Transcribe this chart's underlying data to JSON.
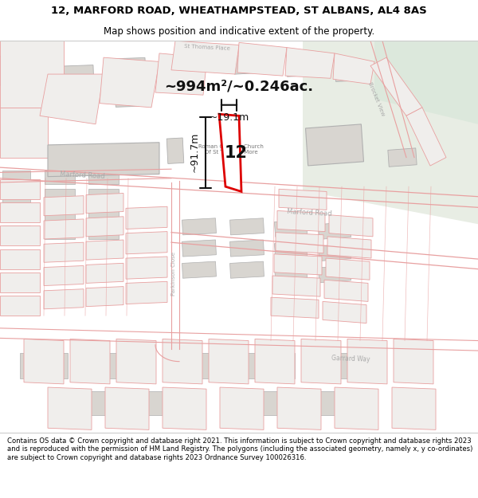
{
  "title_line1": "12, MARFORD ROAD, WHEATHAMPSTEAD, ST ALBANS, AL4 8AS",
  "title_line2": "Map shows position and indicative extent of the property.",
  "footer_text": "Contains OS data © Crown copyright and database right 2021. This information is subject to Crown copyright and database rights 2023 and is reproduced with the permission of HM Land Registry. The polygons (including the associated geometry, namely x, y co-ordinates) are subject to Crown copyright and database rights 2023 Ordnance Survey 100026316.",
  "area_label": "~994m²/~0.246ac.",
  "number_label": "12",
  "dim_width": "~19.1m",
  "dim_height": "~91.7m",
  "map_bg": "#ffffff",
  "parcel_line_color": "#e8a0a0",
  "parcel_fill": "#f0eeec",
  "building_fill": "#d8d5d0",
  "building_edge": "#b0b0b0",
  "plot_outline_color": "#dd0000",
  "road_label_color": "#aaaaaa",
  "annotation_color": "#111111",
  "green_fill": "#e8ede4",
  "title_fontsize": 9.5,
  "subtitle_fontsize": 8.5,
  "footer_fontsize": 6.1
}
